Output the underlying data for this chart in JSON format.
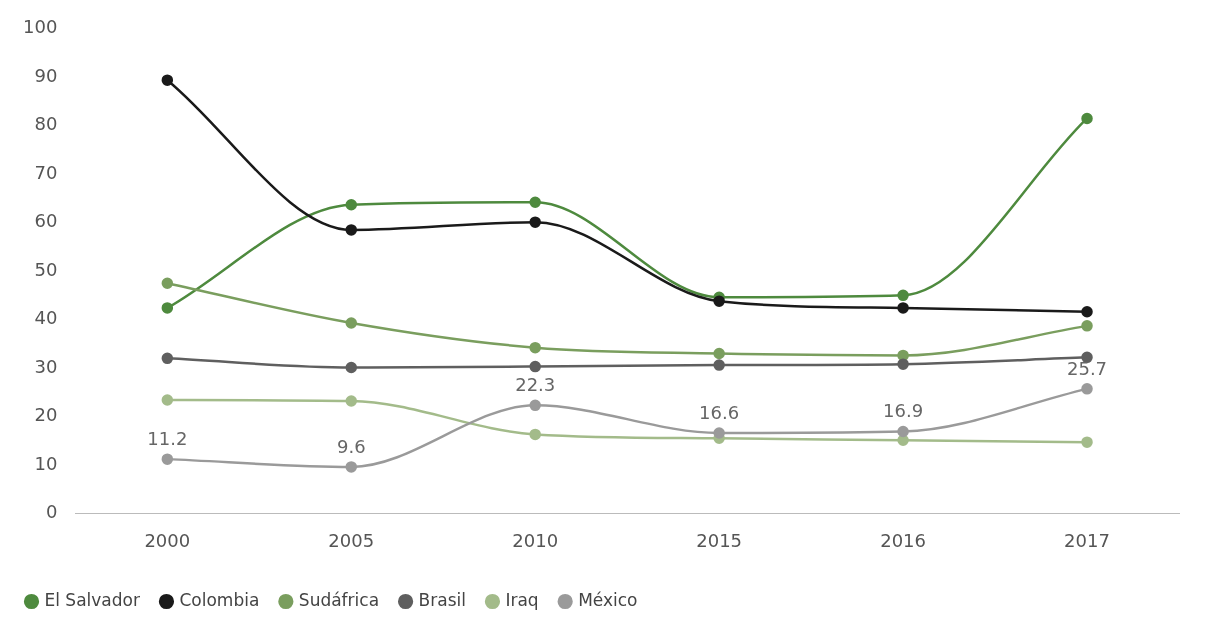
{
  "chart_data": {
    "type": "line",
    "categories": [
      "2000",
      "2005",
      "2010",
      "2015",
      "2016",
      "2017"
    ],
    "series": [
      {
        "name": "El Salvador",
        "color": "#4e8a3e",
        "values": [
          42.4,
          63.7,
          64.2,
          44.6,
          45,
          81.5
        ]
      },
      {
        "name": "Colombia",
        "color": "#1a1a1a",
        "values": [
          89.4,
          58.5,
          60.1,
          43.8,
          42.4,
          41.6
        ]
      },
      {
        "name": "Sudáfrica",
        "color": "#7a9e5e",
        "values": [
          47.5,
          39.3,
          34.2,
          33,
          32.6,
          38.7
        ]
      },
      {
        "name": "Brasil",
        "color": "#5f5f5f",
        "values": [
          32,
          30.1,
          30.3,
          30.6,
          30.8,
          32.2
        ]
      },
      {
        "name": "Iraq",
        "color": "#a3bb8a",
        "values": [
          23.4,
          23.2,
          16.3,
          15.5,
          15.1,
          14.7
        ]
      },
      {
        "name": "México",
        "color": "#9a9a9a",
        "values": [
          11.2,
          9.6,
          22.3,
          16.6,
          16.9,
          25.7
        ],
        "value_labels": [
          "11.2",
          "9.6",
          "22.3",
          "16.6",
          "16.9",
          "25.7"
        ]
      }
    ],
    "ylim": [
      0,
      100
    ],
    "yticks": [
      0,
      10,
      20,
      30,
      40,
      50,
      60,
      70,
      80,
      90,
      100
    ],
    "grid": false,
    "legend": "bottom",
    "marker": "circle",
    "line_style": "solid"
  }
}
